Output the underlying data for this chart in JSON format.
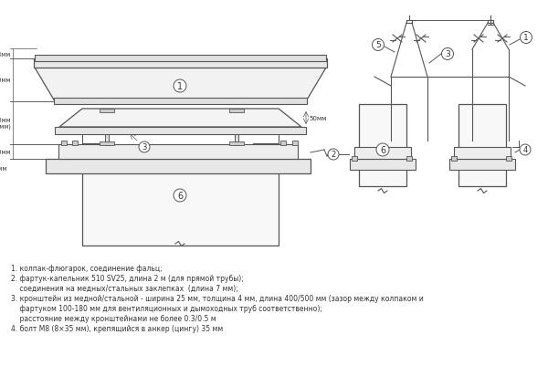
{
  "background_color": "#ffffff",
  "line_color": "#555555",
  "text_color": "#333333",
  "legend_texts": [
    "1. колпак-флюгарок, соединение фальц;",
    "2. фартук-капельник 510 SV25, длина 2 м (для прямой трубы);",
    "    соединения на медных/стальных заклепках  (длина 7 мм);",
    "3. кронштейн из медной/стальной - ширина 25 мм, толщина 4 мм, длина 400/500 мм (зазор между колпаком и",
    "    фартуком 100-180 мм для вентиляционных и дымоходных труб соответственно);",
    "    расстояние между кронштейнами не более 0.3/0.5 м",
    "4. болт M8 (8×35 мм), крепящийся в анкер (цингу) 35 мм"
  ]
}
